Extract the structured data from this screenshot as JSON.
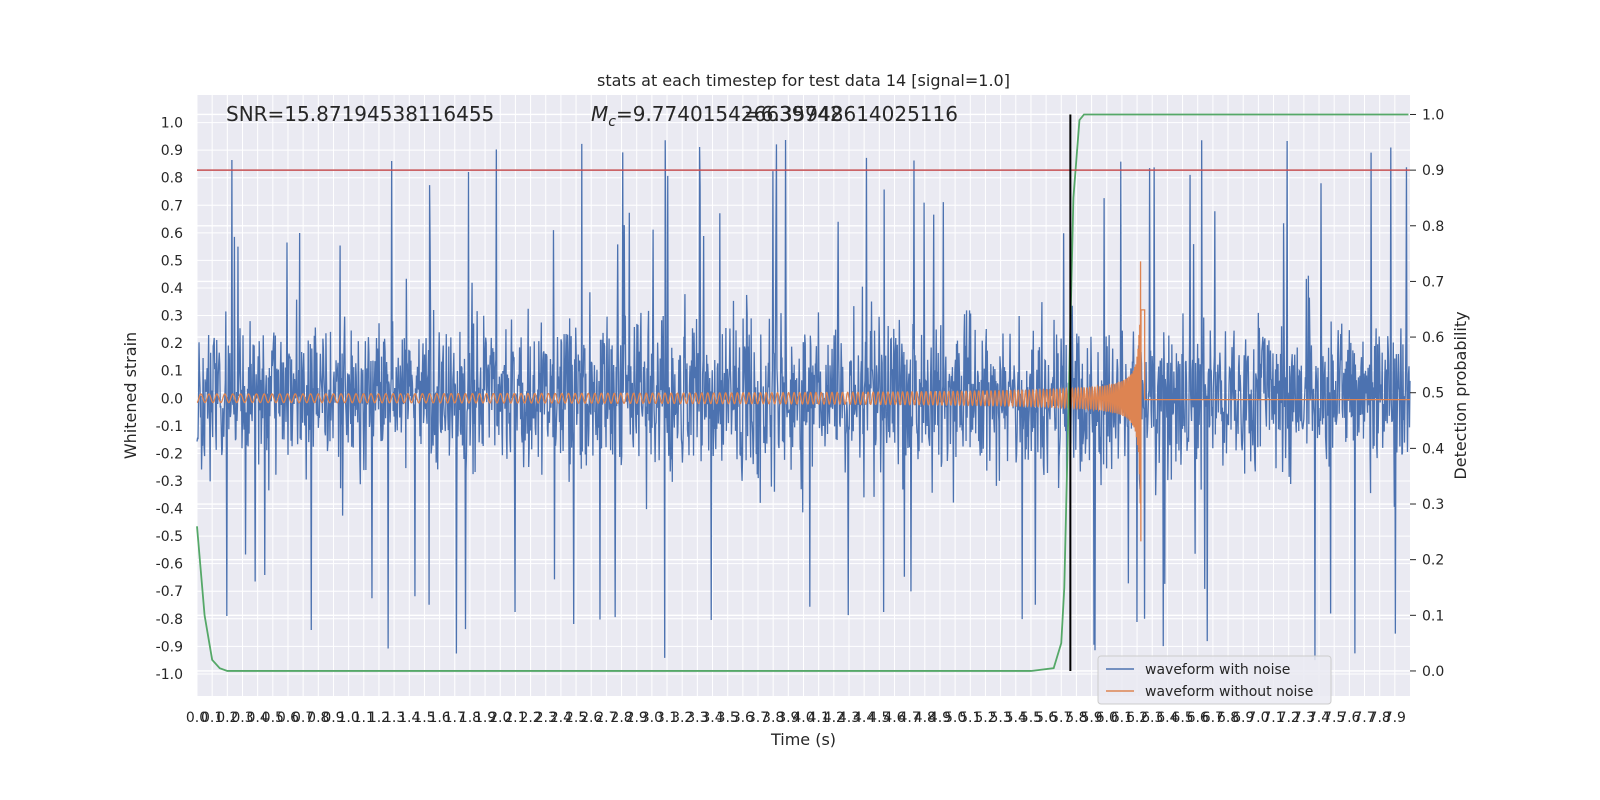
{
  "chart_data": {
    "type": "line",
    "title": "stats at each timestep for test data 14 [signal=1.0]",
    "xlabel": "Time (s)",
    "ylabel": "Whitened strain",
    "y2label": "Detection probability",
    "xlim": [
      0,
      8
    ],
    "ylim": [
      -1.08,
      1.1
    ],
    "y2lim": [
      -0.045,
      1.035
    ],
    "x_ticks": [
      "0.0",
      "0.1",
      "0.2",
      "0.3",
      "0.4",
      "0.5",
      "0.6",
      "0.7",
      "0.8",
      "0.9",
      "1.0",
      "1.1",
      "1.2",
      "1.3",
      "1.4",
      "1.5",
      "1.6",
      "1.7",
      "1.8",
      "1.9",
      "2.0",
      "2.1",
      "2.2",
      "2.3",
      "2.4",
      "2.5",
      "2.6",
      "2.7",
      "2.8",
      "2.9",
      "3.0",
      "3.1",
      "3.2",
      "3.3",
      "3.4",
      "3.5",
      "3.6",
      "3.7",
      "3.8",
      "3.9",
      "4.0",
      "4.1",
      "4.2",
      "4.3",
      "4.4",
      "4.5",
      "4.6",
      "4.7",
      "4.8",
      "4.9",
      "5.0",
      "5.1",
      "5.2",
      "5.3",
      "5.4",
      "5.5",
      "5.6",
      "5.7",
      "5.8",
      "5.9",
      "6.0",
      "6.1",
      "6.2",
      "6.3",
      "6.4",
      "6.5",
      "6.6",
      "6.7",
      "6.8",
      "6.9",
      "7.0",
      "7.1",
      "7.2",
      "7.3",
      "7.4",
      "7.5",
      "7.6",
      "7.7",
      "7.8",
      "7.9"
    ],
    "y_ticks": [
      "1.0",
      "0.9",
      "0.8",
      "0.7",
      "0.6",
      "0.5",
      "0.4",
      "0.3",
      "0.2",
      "0.1",
      "0.0",
      "-0.1",
      "-0.2",
      "-0.3",
      "-0.4",
      "-0.5",
      "-0.6",
      "-0.7",
      "-0.8",
      "-0.9",
      "-1.0"
    ],
    "y2_ticks": [
      "1.0",
      "0.9",
      "0.8",
      "0.7",
      "0.6",
      "0.5",
      "0.4",
      "0.3",
      "0.2",
      "0.1",
      "0.0"
    ],
    "grid": true,
    "legend_position": "lower-right",
    "annotations": {
      "snr": "SNR=15.87194538116455",
      "mc": "=9.774015426639742",
      "mc_symbol": "M",
      "mc_sub": "c",
      "q": "=6.35948614025116"
    },
    "threshold_line": {
      "axis": "y2",
      "value": 0.9,
      "color": "#c44e52"
    },
    "marker_line": {
      "x": 5.76,
      "color": "#000000"
    },
    "series": [
      {
        "name": "waveform with noise",
        "color": "#4c72b0",
        "axis": "y",
        "style": "noise",
        "typical_amplitude": 0.35,
        "peak_values": [
          0.85,
          0.83,
          0.93,
          0.97,
          0.99,
          0.98,
          0.99,
          1.0,
          0.98,
          1.0,
          0.92,
          0.85,
          -0.94,
          -0.98,
          -0.88
        ]
      },
      {
        "name": "waveform without noise",
        "color": "#dd8452",
        "axis": "y",
        "style": "chirp",
        "start_amplitude": 0.015,
        "peak_amplitude": 0.56,
        "peak_min": -0.55,
        "merger_time": 6.23
      },
      {
        "name": "",
        "color": "#55a868",
        "axis": "y2",
        "x": [
          0.0,
          0.05,
          0.1,
          0.15,
          0.2,
          0.3,
          0.5,
          0.6,
          0.8,
          1.0,
          2.0,
          3.0,
          4.0,
          5.0,
          5.5,
          5.65,
          5.7,
          5.72,
          5.75,
          5.78,
          5.82,
          5.85,
          5.9,
          6.0,
          7.0,
          7.99
        ],
        "y": [
          0.26,
          0.1,
          0.02,
          0.005,
          0.0,
          0.0,
          0.0,
          0.0,
          0.0,
          0.0,
          0.0,
          0.0,
          0.0,
          0.0,
          0.0,
          0.005,
          0.05,
          0.15,
          0.5,
          0.85,
          0.99,
          1.0,
          1.0,
          1.0,
          1.0,
          1.0
        ]
      }
    ],
    "legend": [
      "waveform with noise",
      "waveform without noise"
    ]
  }
}
